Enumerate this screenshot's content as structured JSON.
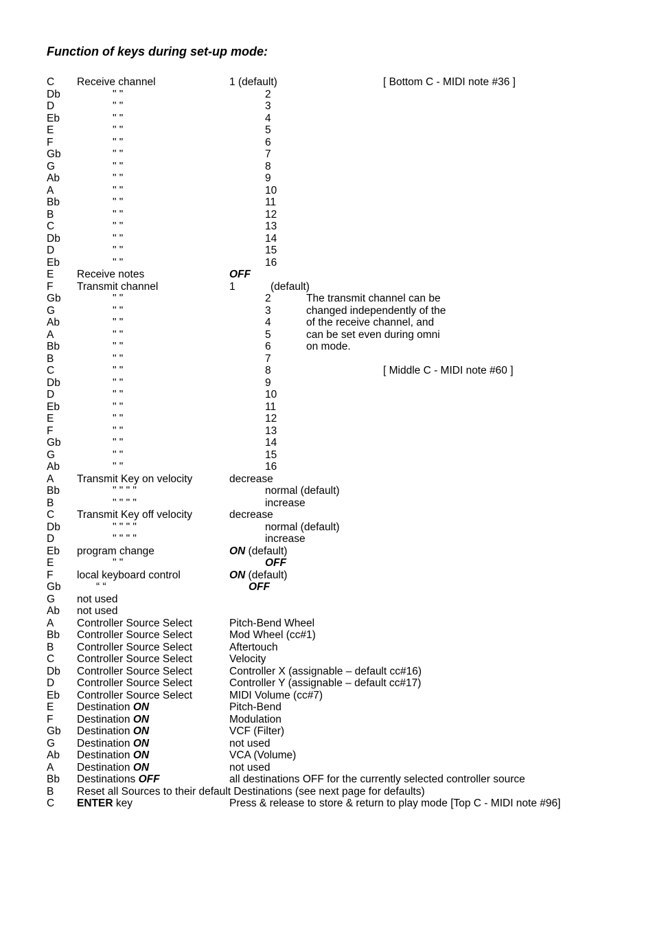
{
  "title": "Function of keys during set-up mode:",
  "ditto2": "\" \"",
  "ditto4": "\" \" \" \"",
  "dittoq": "“ “",
  "hints": {
    "bottomC": "[ Bottom C - MIDI note #36 ]",
    "middleC": "[ Middle C - MIDI note #60 ]"
  },
  "rows": [
    {
      "key": "C",
      "func": "Receive channel",
      "val": "1 (default)"
    },
    {
      "key": "Db",
      "func": "@d2",
      "val": "2"
    },
    {
      "key": "D",
      "func": "@d2",
      "val": "3"
    },
    {
      "key": "Eb",
      "func": "@d2",
      "val": "4"
    },
    {
      "key": "E",
      "func": "@d2",
      "val": "5"
    },
    {
      "key": "F",
      "func": "@d2",
      "val": "6"
    },
    {
      "key": "Gb",
      "func": "@d2",
      "val": "7"
    },
    {
      "key": "G",
      "func": "@d2",
      "val": "8"
    },
    {
      "key": "Ab",
      "func": "@d2",
      "val": "9"
    },
    {
      "key": "A",
      "func": "@d2",
      "val": "10"
    },
    {
      "key": "Bb",
      "func": "@d2",
      "val": "11"
    },
    {
      "key": "B",
      "func": "@d2",
      "val": "12"
    },
    {
      "key": "C",
      "func": "@d2",
      "val": "13"
    },
    {
      "key": "Db",
      "func": "@d2",
      "val": "14"
    },
    {
      "key": "D",
      "func": "@d2",
      "val": "15"
    },
    {
      "key": "Eb",
      "func": "@d2",
      "val": "16"
    },
    {
      "key": "E",
      "func": "Receive notes",
      "val": "OFF",
      "valStyle": "bi"
    },
    {
      "key": "F",
      "func": "Transmit channel",
      "val": "1",
      "desc": "(default)"
    },
    {
      "key": "Gb",
      "func": "@d2",
      "val": "2",
      "desc": "The transmit channel can be"
    },
    {
      "key": "G",
      "func": "@d2",
      "val": "3",
      "desc": "changed independently of the"
    },
    {
      "key": "Ab",
      "func": "@d2",
      "val": "4",
      "desc": "of the receive channel, and"
    },
    {
      "key": "A",
      "func": "@d2",
      "val": "5",
      "desc": "can be set even during omni"
    },
    {
      "key": "Bb",
      "func": "@d2",
      "val": "6",
      "desc": "on mode."
    },
    {
      "key": "B",
      "func": "@d2",
      "val": "7"
    },
    {
      "key": "C",
      "func": "@d2",
      "val": "8"
    },
    {
      "key": "Db",
      "func": "@d2",
      "val": "9"
    },
    {
      "key": "D",
      "func": "@d2",
      "val": "10"
    },
    {
      "key": "Eb",
      "func": "@d2",
      "val": "11"
    },
    {
      "key": "E",
      "func": "@d2",
      "val": "12"
    },
    {
      "key": "F",
      "func": "@d2",
      "val": "13"
    },
    {
      "key": "Gb",
      "func": "@d2",
      "val": "14"
    },
    {
      "key": "G",
      "func": "@d2",
      "val": "15"
    },
    {
      "key": "Ab",
      "func": "@d2",
      "val": "16"
    },
    {
      "key": "A",
      "func": "Transmit Key on velocity",
      "valWide": "decrease"
    },
    {
      "key": "Bb",
      "func": "@d4",
      "valWide": "normal (default)"
    },
    {
      "key": "B",
      "func": "@d4",
      "valWide": "increase"
    },
    {
      "key": "C",
      "func": "Transmit Key off velocity",
      "valWide": "decrease"
    },
    {
      "key": "Db",
      "func": "@d4",
      "valWide": "normal (default)"
    },
    {
      "key": "D",
      "func": "@d4",
      "valWide": "increase"
    },
    {
      "key": "Eb",
      "func": "program change",
      "valWideHtml": "<span class='bold ital'>ON</span> (default)"
    },
    {
      "key": "E",
      "func": "@d2",
      "val": "OFF",
      "valStyle": "bi"
    },
    {
      "key": "F",
      "func": "local keyboard control",
      "valWideHtml": "<span class='bold ital'>ON</span> (default)"
    },
    {
      "key": "Gb",
      "func": "@dq",
      "val": "OFF",
      "valStyle": "bi"
    },
    {
      "key": "G",
      "func": "not used"
    },
    {
      "key": "Ab",
      "func": "not used"
    },
    {
      "key": "A",
      "func": "Controller Source Select",
      "valWide": "Pitch-Bend Wheel"
    },
    {
      "key": "Bb",
      "func": "Controller Source Select",
      "valWide": "Mod Wheel (cc#1)"
    },
    {
      "key": "B",
      "func": "Controller Source Select",
      "valWide": "Aftertouch"
    },
    {
      "key": "C",
      "func": "Controller Source Select",
      "valWide": "Velocity"
    },
    {
      "key": "Db",
      "func": "Controller Source Select",
      "valWide": "Controller X (assignable – default cc#16)"
    },
    {
      "key": "D",
      "func": "Controller Source Select",
      "valWide": "Controller Y (assignable – default cc#17)"
    },
    {
      "key": "Eb",
      "func": "Controller Source Select",
      "valWide": "MIDI Volume (cc#7)"
    },
    {
      "key": "E",
      "funcHtml": "Destination <span class='bold ital'>ON</span>",
      "valWide": "Pitch-Bend"
    },
    {
      "key": "F",
      "funcHtml": "Destination <span class='bold ital'>ON</span>",
      "valWide": "Modulation"
    },
    {
      "key": "Gb",
      "funcHtml": "Destination <span class='bold ital'>ON</span>",
      "valWide": "VCF (Filter)"
    },
    {
      "key": "G",
      "funcHtml": "Destination <span class='bold ital'>ON</span>",
      "valWide": "not used"
    },
    {
      "key": "Ab",
      "funcHtml": "Destination <span class='bold ital'>ON</span>",
      "valWide": "VCA (Volume)"
    },
    {
      "key": "A",
      "funcHtml": "Destination <span class='bold ital'>ON</span>",
      "valWide": "not used"
    },
    {
      "key": "Bb",
      "funcHtml": "Destinations <span class='bold ital'>OFF</span>",
      "valWide": "all destinations OFF for the currently selected controller source"
    },
    {
      "key": "B",
      "fullLine": "Reset all Sources to their default Destinations (see next page for defaults)"
    },
    {
      "key": "C",
      "funcHtml": "<span class='bold'>ENTER</span> key",
      "valWide": "Press & release to store & return to play mode [Top C - MIDI note #96]"
    }
  ]
}
